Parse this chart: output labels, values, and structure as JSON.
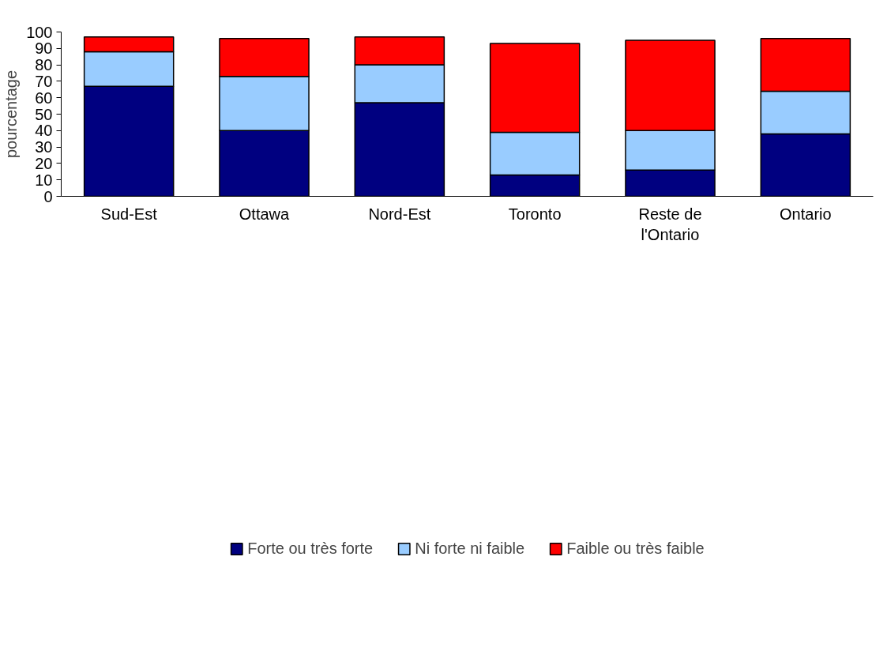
{
  "chart_data": {
    "type": "bar",
    "stacked": true,
    "ylabel": "pourcentage",
    "categories": [
      "Sud-Est",
      "Ottawa",
      "Nord-Est",
      "Toronto",
      "Reste de\nl'Ontario",
      "Ontario"
    ],
    "series": [
      {
        "name": "Forte ou très forte",
        "color": "#000080",
        "values": [
          67,
          40,
          57,
          13,
          16,
          38
        ]
      },
      {
        "name": "Ni forte ni faible",
        "color": "#99ccff",
        "values": [
          21,
          33,
          23,
          26,
          24,
          26
        ]
      },
      {
        "name": "Faible ou très faible",
        "color": "#ff0000",
        "values": [
          9,
          23,
          17,
          54,
          55,
          32
        ]
      }
    ],
    "ylim": [
      0,
      100
    ],
    "yticks": [
      0,
      10,
      20,
      30,
      40,
      50,
      60,
      70,
      80,
      90,
      100
    ],
    "grid": false,
    "legend": "bottom"
  }
}
